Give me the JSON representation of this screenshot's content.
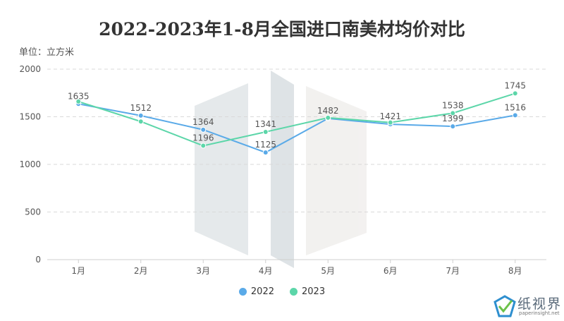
{
  "chart_data": {
    "type": "line",
    "title": "2022-2023年1-8月全国进口南美材均价对比",
    "unit_label": "单位：立方米",
    "categories": [
      "1月",
      "2月",
      "3月",
      "4月",
      "5月",
      "6月",
      "7月",
      "8月"
    ],
    "ylim": [
      0,
      2000
    ],
    "yticks": [
      0,
      500,
      1000,
      1500,
      2000
    ],
    "grid": true,
    "legend_position": "bottom-center",
    "series": [
      {
        "name": "2022",
        "color": "#5aaae8",
        "values": [
          1635,
          1512,
          1364,
          1125,
          1482,
          1421,
          1399,
          1516
        ],
        "labels": [
          "1635",
          "1512",
          "1364",
          "1125",
          "1482",
          "1421",
          "1399",
          "1516"
        ]
      },
      {
        "name": "2023",
        "color": "#5cd6a9",
        "values": [
          1660,
          1450,
          1196,
          1341,
          1490,
          1440,
          1538,
          1745
        ],
        "labels": [
          "",
          "",
          "1196",
          "1341",
          "",
          "",
          "1538",
          "1745"
        ]
      }
    ]
  },
  "watermark": {
    "brand": "纸视界",
    "url": "paperinsight.net",
    "icon": "paper-check-logo-icon"
  }
}
